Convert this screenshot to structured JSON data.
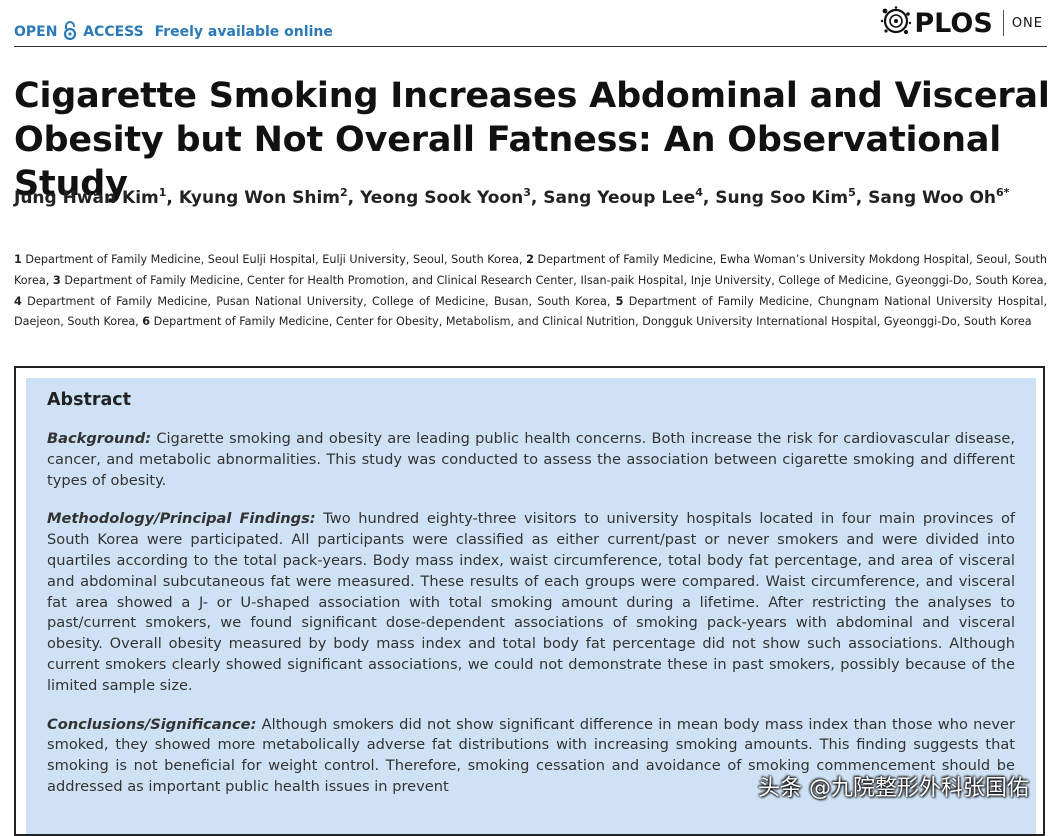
{
  "header": {
    "open_access": "OPEN",
    "access": "ACCESS",
    "freely": "Freely available online",
    "journal_word": "PLOS",
    "journal_sub": "ONE",
    "colors": {
      "accent": "#2a7ab8",
      "abstract_bg": "#cfe2f5"
    },
    "icons": [
      "open-access-lock-icon",
      "plos-logo-icon"
    ]
  },
  "article": {
    "title": "Cigarette Smoking Increases Abdominal and Visceral Obesity but Not Overall Fatness: An Observational Study",
    "authors": [
      {
        "name": "Jung Hwan Kim",
        "sup": "1",
        "sep": ", "
      },
      {
        "name": "Kyung Won Shim",
        "sup": "2",
        "sep": ", "
      },
      {
        "name": "Yeong Sook Yoon",
        "sup": "3",
        "sep": ", "
      },
      {
        "name": "Sang Yeoup Lee",
        "sup": "4",
        "sep": ", "
      },
      {
        "name": "Sung Soo Kim",
        "sup": "5",
        "sep": ", "
      },
      {
        "name": "Sang Woo Oh",
        "sup": "6*",
        "sep": ""
      }
    ],
    "affiliations": [
      {
        "num": "1",
        "text": " Department of Family Medicine, Seoul Eulji Hospital, Eulji University, Seoul, South Korea, "
      },
      {
        "num": "2",
        "text": " Department of Family Medicine, Ewha Woman’s University Mokdong Hospital, Seoul, South Korea, "
      },
      {
        "num": "3",
        "text": " Department of Family Medicine, Center for Health Promotion, and Clinical Research Center, Ilsan-paik Hospital, Inje University, College of Medicine, Gyeonggi-Do, South Korea, "
      },
      {
        "num": "4",
        "text": " Department of Family Medicine, Pusan National University, College of Medicine, Busan, South Korea, "
      },
      {
        "num": "5",
        "text": " Department of Family Medicine, Chungnam National University Hospital, Daejeon, South Korea, "
      },
      {
        "num": "6",
        "text": " Department of Family Medicine, Center for Obesity, Metabolism, and Clinical Nutrition, Dongguk University International Hospital, Gyeonggi-Do, South Korea"
      }
    ]
  },
  "abstract": {
    "heading": "Abstract",
    "background_label": "Background:",
    "background_text": " Cigarette smoking and obesity are leading public health concerns. Both increase the risk for cardiovascular disease, cancer, and metabolic abnormalities. This study was conducted to assess the association between cigarette smoking and different types of obesity.",
    "methods_label": "Methodology/Principal Findings:",
    "methods_text": " Two hundred eighty-three visitors to university hospitals located in four main provinces of South Korea were participated. All participants were classified as either current/past or never smokers and were divided into quartiles according to the total pack-years. Body mass index, waist circumference, total body fat percentage, and area of visceral and abdominal subcutaneous fat were measured. These results of each groups were compared. Waist circumference, and visceral fat area showed a J- or U-shaped association with total smoking amount during a lifetime. After restricting the analyses to past/current smokers, we found significant dose-dependent associations of smoking pack-years with abdominal and visceral obesity. Overall obesity measured by body mass index and total body fat percentage did not show such associations. Although current smokers clearly showed significant associations, we could not demonstrate these in past smokers, possibly because of the limited sample size.",
    "conclusions_label": "Conclusions/Significance:",
    "conclusions_text": " Although smokers did not show significant difference in mean body mass index than those who never smoked, they showed more metabolically adverse fat distributions with increasing smoking amounts. This finding suggests that smoking is not beneficial for weight control. Therefore, smoking cessation and avoidance of smoking commencement should be addressed as important public health issues in prevent"
  },
  "watermark": "头条 @九院整形外科张国佑"
}
